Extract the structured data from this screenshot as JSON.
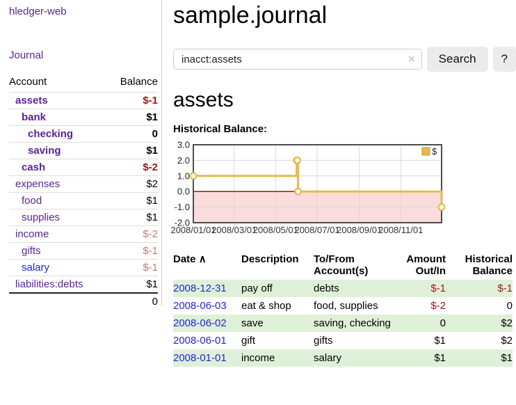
{
  "app": {
    "brand": "hledger-web"
  },
  "sidebar": {
    "journal_link": "Journal",
    "accounts_table": {
      "col_account": "Account",
      "col_balance": "Balance",
      "rows": [
        {
          "name": "assets",
          "balance": "$-1",
          "depth": 1,
          "emph": true,
          "name_color": "purple",
          "balance_tone": "neg"
        },
        {
          "name": "bank",
          "balance": "$1",
          "depth": 2,
          "emph": true,
          "name_color": "purple",
          "balance_tone": "normal"
        },
        {
          "name": "checking",
          "balance": "0",
          "depth": 3,
          "emph": true,
          "name_color": "purple",
          "balance_tone": "normal"
        },
        {
          "name": "saving",
          "balance": "$1",
          "depth": 3,
          "emph": true,
          "name_color": "purple",
          "balance_tone": "normal"
        },
        {
          "name": "cash",
          "balance": "$-2",
          "depth": 2,
          "emph": true,
          "name_color": "purple",
          "balance_tone": "neg"
        },
        {
          "name": "expenses",
          "balance": "$2",
          "depth": 1,
          "emph": false,
          "name_color": "purple",
          "balance_tone": "normal"
        },
        {
          "name": "food",
          "balance": "$1",
          "depth": 2,
          "emph": false,
          "name_color": "purple",
          "balance_tone": "normal"
        },
        {
          "name": "supplies",
          "balance": "$1",
          "depth": 2,
          "emph": false,
          "name_color": "purple",
          "balance_tone": "normal"
        },
        {
          "name": "income",
          "balance": "$-2",
          "depth": 1,
          "emph": false,
          "name_color": "purple",
          "balance_tone": "negmuted"
        },
        {
          "name": "gifts",
          "balance": "$-1",
          "depth": 2,
          "emph": false,
          "name_color": "purple",
          "balance_tone": "negmuted"
        },
        {
          "name": "salary",
          "balance": "$-1",
          "depth": 2,
          "emph": false,
          "name_color": "blue",
          "balance_tone": "negmuted"
        },
        {
          "name": "liabilities:debts",
          "balance": "$1",
          "depth": 1,
          "emph": false,
          "name_color": "purple",
          "balance_tone": "normal"
        }
      ],
      "total": "0"
    }
  },
  "main": {
    "title": "sample.journal",
    "account_heading": "assets"
  },
  "search": {
    "query": "inacct:assets",
    "clear_icon": "×",
    "button_label": "Search",
    "help_label": "?"
  },
  "chart_data": {
    "type": "line",
    "title": "Historical Balance:",
    "step": true,
    "series": [
      {
        "name": "$",
        "points": [
          [
            "2008-01-01",
            1
          ],
          [
            "2008-06-01",
            2
          ],
          [
            "2008-06-02",
            2
          ],
          [
            "2008-06-03",
            0
          ],
          [
            "2008-12-31",
            -1
          ]
        ]
      }
    ],
    "xlim": [
      "2008-01-01",
      "2008-12-31"
    ],
    "ylim": [
      -2,
      3
    ],
    "y_ticks": [
      3,
      2,
      1,
      0,
      -1,
      -2
    ],
    "x_tick_labels": [
      "2008/01/01",
      "2008/03/01",
      "2008/05/01",
      "2008/07/01",
      "2008/09/01",
      "2008/11/01"
    ],
    "legend": {
      "label": "$",
      "position": "top-right"
    },
    "colors": {
      "line": "#e4bb48",
      "marker_fill": "#ffffff",
      "negative_region": "#fadcdc",
      "zero_line": "#8b0000",
      "grid": "#d8d8d8",
      "border": "#4c4c4c"
    }
  },
  "register": {
    "headers": {
      "date": "Date",
      "sort_indicator": "∧",
      "description": "Description",
      "tofrom": "To/From Account(s)",
      "amount": "Amount Out/In",
      "balance": "Historical Balance"
    },
    "rows": [
      {
        "date": "2008-12-31",
        "description": "pay off",
        "accounts": "debts",
        "amount": "$-1",
        "amount_neg": true,
        "balance": "$-1",
        "balance_neg": true,
        "shaded": true
      },
      {
        "date": "2008-06-03",
        "description": "eat & shop",
        "accounts": "food, supplies",
        "amount": "$-2",
        "amount_neg": true,
        "balance": "0",
        "balance_neg": false,
        "shaded": false
      },
      {
        "date": "2008-06-02",
        "description": "save",
        "accounts": "saving, checking",
        "amount": "0",
        "amount_neg": false,
        "balance": "$2",
        "balance_neg": false,
        "shaded": true
      },
      {
        "date": "2008-06-01",
        "description": "gift",
        "accounts": "gifts",
        "amount": "$1",
        "amount_neg": false,
        "balance": "$2",
        "balance_neg": false,
        "shaded": false
      },
      {
        "date": "2008-01-01",
        "description": "income",
        "accounts": "salary",
        "amount": "$1",
        "amount_neg": false,
        "balance": "$1",
        "balance_neg": false,
        "shaded": true
      }
    ]
  }
}
